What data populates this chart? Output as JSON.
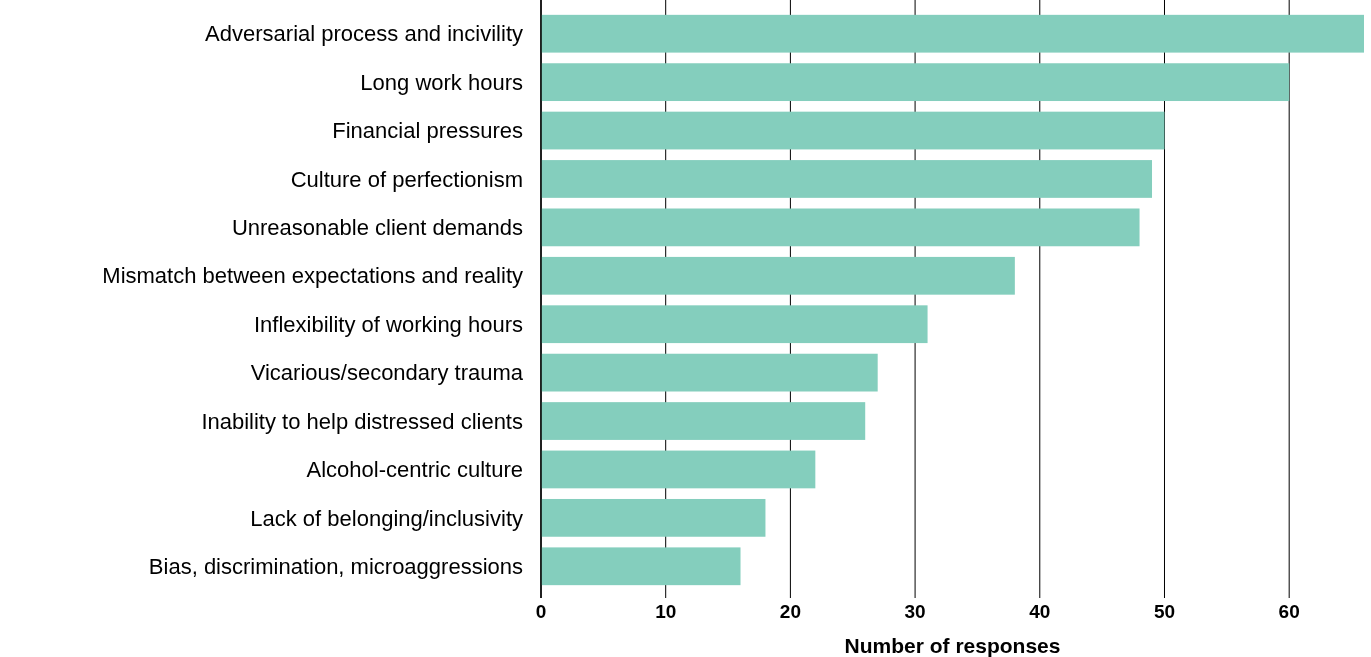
{
  "chart_data": {
    "type": "bar",
    "orientation": "horizontal",
    "xlabel": "Number of responses",
    "categories": [
      "Adversarial process and incivility",
      "Long work hours",
      "Financial pressures",
      "Culture of perfectionism",
      "Unreasonable client demands",
      "Mismatch between expectations and reality",
      "Inflexibility of working hours",
      "Vicarious/secondary trauma",
      "Inability to help distressed clients",
      "Alcohol-centric culture",
      "Lack of belonging/inclusivity",
      "Bias, discrimination, microaggressions"
    ],
    "values": [
      66,
      60,
      50,
      49,
      48,
      38,
      31,
      27,
      26,
      22,
      18,
      16
    ],
    "color": "#84cebd",
    "xlim": [
      0,
      66
    ],
    "xticks": [
      0,
      10,
      20,
      30,
      40,
      50,
      60
    ],
    "grid": "x"
  }
}
